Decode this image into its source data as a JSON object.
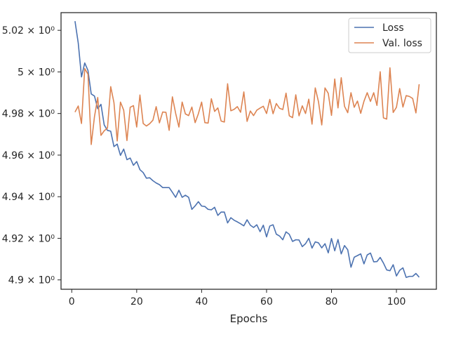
{
  "chart_data": {
    "type": "line",
    "xlabel": "Epochs",
    "ylabel": "",
    "xlim": [
      -3.3,
      112.3
    ],
    "ylim": [
      4.8955,
      5.0285
    ],
    "x_ticks": [
      0,
      20,
      40,
      60,
      80,
      100
    ],
    "x_tick_labels": [
      "0",
      "20",
      "40",
      "60",
      "80",
      "100"
    ],
    "y_ticks": [
      4.9,
      4.92,
      4.94,
      4.96,
      4.98,
      5.0,
      5.02
    ],
    "y_tick_labels": [
      "4.9 × 10⁰",
      "4.92 × 10⁰",
      "4.94 × 10⁰",
      "4.96 × 10⁰",
      "4.98 × 10⁰",
      "5 × 10⁰",
      "5.02 × 10⁰"
    ],
    "legend_position": "top-right",
    "grid": false,
    "colors": {
      "loss": "#4c72b0",
      "val_loss": "#dd8452",
      "axes": "#262626"
    },
    "series": [
      {
        "name": "Loss",
        "x_start": 1,
        "values": [
          5.0244,
          5.0139,
          4.9976,
          5.0043,
          5.0007,
          4.9894,
          4.9884,
          4.9823,
          4.9844,
          4.9745,
          4.9719,
          4.9715,
          4.9641,
          4.9653,
          4.9599,
          4.9629,
          4.9578,
          4.9586,
          4.9551,
          4.9569,
          4.953,
          4.9516,
          4.9489,
          4.9491,
          4.9477,
          4.9466,
          4.9458,
          4.9444,
          4.9444,
          4.9444,
          4.9421,
          4.9397,
          4.9431,
          4.9397,
          4.9407,
          4.9397,
          4.9339,
          4.9356,
          4.9376,
          4.9355,
          4.9353,
          4.9339,
          4.9337,
          4.9349,
          4.931,
          4.9326,
          4.9326,
          4.9274,
          4.9299,
          4.9287,
          4.9279,
          4.927,
          4.926,
          4.9289,
          4.9263,
          4.9252,
          4.9265,
          4.9232,
          4.9263,
          4.9207,
          4.9259,
          4.9265,
          4.922,
          4.9211,
          4.9193,
          4.9231,
          4.9219,
          4.9185,
          4.9193,
          4.9192,
          4.916,
          4.9174,
          4.92,
          4.9153,
          4.9183,
          4.9178,
          4.9154,
          4.9174,
          4.913,
          4.9199,
          4.914,
          4.9194,
          4.9125,
          4.9165,
          4.9145,
          4.9061,
          4.9109,
          4.9117,
          4.9125,
          4.9077,
          4.912,
          4.9129,
          4.9087,
          4.9088,
          4.9108,
          4.9081,
          4.9048,
          4.9044,
          4.9073,
          4.9019,
          4.9046,
          4.9058,
          4.9012,
          4.9017,
          4.9017,
          4.9031,
          4.9013
        ]
      },
      {
        "name": "Val. loss",
        "x_start": 1,
        "values": [
          4.9807,
          4.9836,
          4.9752,
          5.0016,
          4.9989,
          4.9651,
          4.9785,
          4.9877,
          4.9695,
          4.9717,
          4.973,
          4.9929,
          4.9852,
          4.9668,
          4.9855,
          4.9816,
          4.967,
          4.983,
          4.9838,
          4.9735,
          4.9889,
          4.9752,
          4.974,
          4.9751,
          4.9768,
          4.9833,
          4.9755,
          4.9807,
          4.9806,
          4.9719,
          4.988,
          4.9801,
          4.9735,
          4.9855,
          4.9798,
          4.979,
          4.9831,
          4.9756,
          4.9799,
          4.9855,
          4.9756,
          4.9754,
          4.9871,
          4.981,
          4.9827,
          4.9764,
          4.9759,
          4.9943,
          4.9813,
          4.982,
          4.9833,
          4.9806,
          4.9904,
          4.9762,
          4.9812,
          4.979,
          4.9816,
          4.9826,
          4.9835,
          4.98,
          4.9868,
          4.9799,
          4.9848,
          4.9825,
          4.9819,
          4.9898,
          4.9789,
          4.978,
          4.989,
          4.9789,
          4.9837,
          4.98,
          4.9869,
          4.9749,
          4.9923,
          4.9856,
          4.9745,
          4.9923,
          4.9897,
          4.9791,
          4.9966,
          4.9827,
          4.9972,
          4.9835,
          4.9804,
          4.99,
          4.983,
          4.986,
          4.9801,
          4.9859,
          4.99,
          4.9858,
          4.99,
          4.9839,
          5.0001,
          4.9779,
          4.9773,
          5.002,
          4.9805,
          4.983,
          4.992,
          4.9831,
          4.9886,
          4.9882,
          4.9872,
          4.9803,
          4.9941
        ]
      }
    ]
  }
}
